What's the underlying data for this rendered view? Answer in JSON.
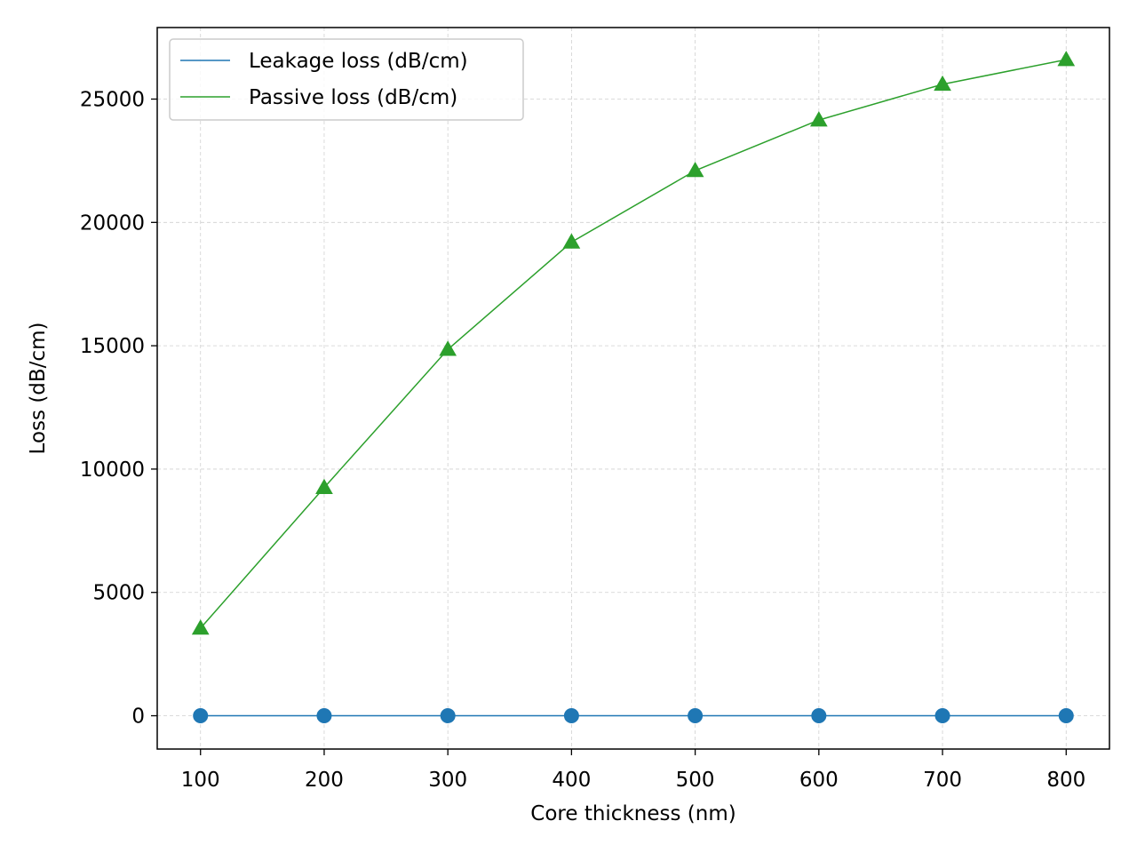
{
  "chart_data": {
    "type": "line",
    "title": "",
    "xlabel": "Core thickness (nm)",
    "ylabel": "Loss (dB/cm)",
    "x": [
      100,
      200,
      300,
      400,
      500,
      600,
      700,
      800
    ],
    "xticks": [
      "100",
      "200",
      "300",
      "400",
      "500",
      "600",
      "700",
      "800"
    ],
    "yticks": [
      "0",
      "5000",
      "10000",
      "15000",
      "20000",
      "25000"
    ],
    "xlim": [
      65,
      835
    ],
    "ylim": [
      -1350,
      27900
    ],
    "grid": true,
    "legend_position": "top-left",
    "series": [
      {
        "name": "Leakage loss (dB/cm)",
        "color": "#1f77b4",
        "marker": "circle",
        "values": [
          0,
          0,
          0,
          0,
          0,
          0,
          0,
          0
        ]
      },
      {
        "name": "Passive loss (dB/cm)",
        "color": "#2ca02c",
        "marker": "triangle",
        "values": [
          3550,
          9250,
          14850,
          19200,
          22100,
          24150,
          25600,
          26600
        ]
      }
    ]
  }
}
